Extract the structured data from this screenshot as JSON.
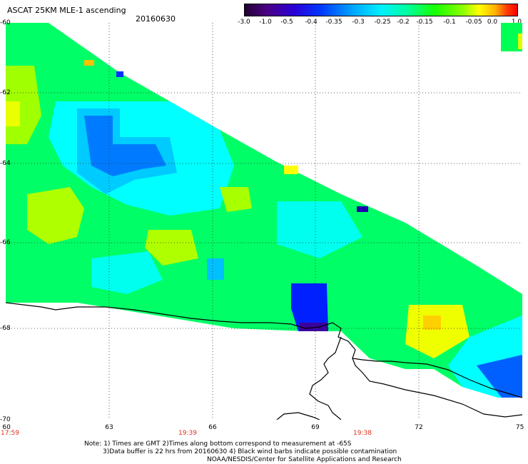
{
  "header": {
    "title": "ASCAT 25KM MLE-1 ascending",
    "date": "20160630"
  },
  "colorbar": {
    "labels": [
      "-3.0",
      "-1.0",
      "-0.5",
      "-0.4",
      "-0.35",
      "-0.3",
      "-0.25",
      "-0.2",
      "-0.15",
      "-0.1",
      "-0.05",
      "0.0",
      "1.0"
    ]
  },
  "axes": {
    "lat_labels": [
      "-60",
      "-62",
      "-64",
      "-66",
      "-68",
      "-70"
    ],
    "lon_labels": [
      "60",
      "63",
      "66",
      "69",
      "72",
      "75"
    ],
    "time_labels": [
      "17:59",
      "19:39",
      "19:38"
    ]
  },
  "notes": {
    "line1": "Note: 1) Times are GMT 2)Times along bottom correspond to measurement at -65S",
    "line2": "3)Data buffer is 22 hrs from 20160630 4) Black wind barbs indicate possible contamination",
    "line3": "NOAA/NESDIS/Center for Satellite Applications and Research"
  },
  "colors": {
    "purple": "#3a00a0",
    "blue": "#0030ff",
    "lightblue": "#00c8ff",
    "cyan": "#00ffff",
    "aqua": "#00ffb0",
    "green": "#00ff30",
    "lime": "#70ff00",
    "yellow": "#e8ff00",
    "orange": "#ffb000",
    "red": "#ff2000"
  }
}
